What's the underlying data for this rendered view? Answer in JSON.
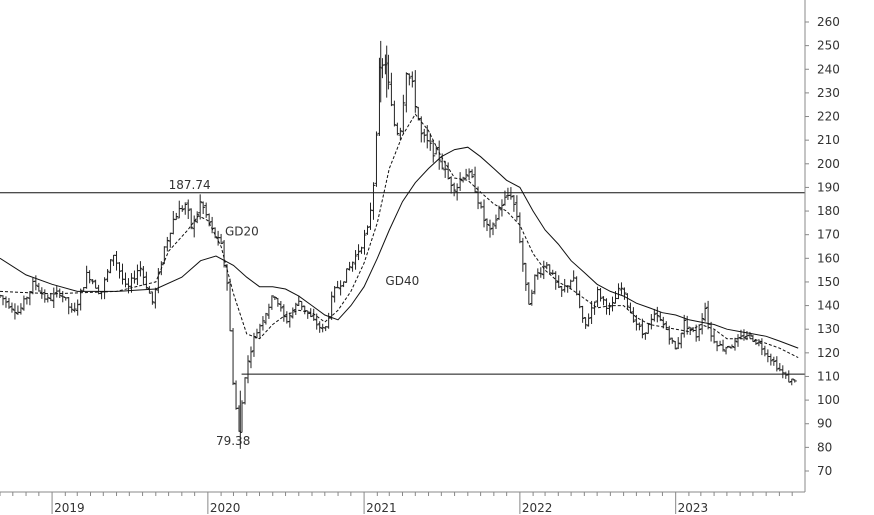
{
  "chart_data": {
    "type": "ohlc",
    "title": "",
    "xlabel": "",
    "ylabel": "",
    "ylim": [
      60,
      265
    ],
    "y_ticks": [
      70,
      80,
      90,
      100,
      110,
      120,
      130,
      140,
      150,
      160,
      170,
      180,
      190,
      200,
      210,
      220,
      230,
      240,
      250,
      260
    ],
    "x_range": [
      "2018-09-01",
      "2023-10-31"
    ],
    "x_ticks": [
      {
        "date": "2019-01-01",
        "label": "2019"
      },
      {
        "date": "2020-01-01",
        "label": "2020"
      },
      {
        "date": "2021-01-01",
        "label": "2021"
      },
      {
        "date": "2022-01-01",
        "label": "2022"
      },
      {
        "date": "2023-01-01",
        "label": "2023"
      }
    ],
    "grid": false,
    "horizontal_lines": [
      {
        "y": 187.74,
        "from": "2018-09-01",
        "to": "2023-10-31"
      },
      {
        "y": 111,
        "from": "2020-03-20",
        "to": "2023-10-31"
      }
    ],
    "annotations": [
      {
        "text": "187.74",
        "date": "2019-10-01",
        "y": 187.74
      },
      {
        "text": "79.38",
        "date": "2020-01-20",
        "y": 79.38
      },
      {
        "text": "GD20",
        "date": "2020-02-10",
        "y": 168
      },
      {
        "text": "GD40",
        "date": "2021-02-20",
        "y": 147
      }
    ],
    "price_anchors": [
      [
        "2018-09-01",
        144
      ],
      [
        "2018-10-15",
        137
      ],
      [
        "2018-11-20",
        150
      ],
      [
        "2018-12-20",
        142
      ],
      [
        "2019-01-20",
        146
      ],
      [
        "2019-02-20",
        136
      ],
      [
        "2019-03-25",
        154
      ],
      [
        "2019-04-25",
        145
      ],
      [
        "2019-05-25",
        162
      ],
      [
        "2019-06-25",
        146
      ],
      [
        "2019-07-25",
        157
      ],
      [
        "2019-08-25",
        141
      ],
      [
        "2019-09-20",
        164
      ],
      [
        "2019-10-15",
        178
      ],
      [
        "2019-11-10",
        183
      ],
      [
        "2019-11-25",
        172
      ],
      [
        "2019-12-15",
        184
      ],
      [
        "2020-01-10",
        172
      ],
      [
        "2020-02-01",
        165
      ],
      [
        "2020-02-15",
        150
      ],
      [
        "2020-03-01",
        105
      ],
      [
        "2020-03-15",
        85
      ],
      [
        "2020-03-25",
        108
      ],
      [
        "2020-04-15",
        125
      ],
      [
        "2020-05-10",
        135
      ],
      [
        "2020-06-05",
        145
      ],
      [
        "2020-07-01",
        133
      ],
      [
        "2020-08-01",
        142
      ],
      [
        "2020-09-01",
        134
      ],
      [
        "2020-10-01",
        129
      ],
      [
        "2020-10-20",
        145
      ],
      [
        "2020-11-15",
        152
      ],
      [
        "2020-12-10",
        160
      ],
      [
        "2021-01-10",
        172
      ],
      [
        "2021-01-25",
        195
      ],
      [
        "2021-02-05",
        238
      ],
      [
        "2021-02-20",
        243
      ],
      [
        "2021-03-10",
        218
      ],
      [
        "2021-03-25",
        212
      ],
      [
        "2021-04-10",
        240
      ],
      [
        "2021-04-25",
        232
      ],
      [
        "2021-05-15",
        212
      ],
      [
        "2021-06-05",
        207
      ],
      [
        "2021-06-25",
        203
      ],
      [
        "2021-07-15",
        194
      ],
      [
        "2021-08-05",
        190
      ],
      [
        "2021-08-25",
        197
      ],
      [
        "2021-09-15",
        192
      ],
      [
        "2021-10-05",
        178
      ],
      [
        "2021-10-25",
        170
      ],
      [
        "2021-11-15",
        182
      ],
      [
        "2021-12-10",
        188
      ],
      [
        "2021-12-25",
        178
      ],
      [
        "2022-01-10",
        155
      ],
      [
        "2022-01-20",
        140
      ],
      [
        "2022-02-05",
        152
      ],
      [
        "2022-03-05",
        158
      ],
      [
        "2022-04-05",
        145
      ],
      [
        "2022-05-05",
        152
      ],
      [
        "2022-06-01",
        130
      ],
      [
        "2022-07-01",
        146
      ],
      [
        "2022-08-01",
        138
      ],
      [
        "2022-08-25",
        148
      ],
      [
        "2022-09-20",
        136
      ],
      [
        "2022-10-15",
        128
      ],
      [
        "2022-11-15",
        136
      ],
      [
        "2022-12-10",
        130
      ],
      [
        "2023-01-01",
        121
      ],
      [
        "2023-01-20",
        133
      ],
      [
        "2023-02-20",
        127
      ],
      [
        "2023-03-10",
        140
      ],
      [
        "2023-03-25",
        127
      ],
      [
        "2023-04-20",
        122
      ],
      [
        "2023-05-20",
        124
      ],
      [
        "2023-06-15",
        128
      ],
      [
        "2023-07-15",
        124
      ],
      [
        "2023-08-15",
        117
      ],
      [
        "2023-09-05",
        112
      ],
      [
        "2023-09-25",
        108
      ],
      [
        "2023-10-10",
        109
      ]
    ],
    "gd20_anchors": [
      [
        "2018-09-01",
        146
      ],
      [
        "2019-01-01",
        145
      ],
      [
        "2019-06-01",
        146
      ],
      [
        "2019-09-01",
        150
      ],
      [
        "2019-10-01",
        163
      ],
      [
        "2019-11-15",
        172
      ],
      [
        "2019-12-10",
        178
      ],
      [
        "2020-01-01",
        176
      ],
      [
        "2020-02-01",
        165
      ],
      [
        "2020-03-01",
        145
      ],
      [
        "2020-04-01",
        128
      ],
      [
        "2020-05-01",
        126
      ],
      [
        "2020-06-01",
        132
      ],
      [
        "2020-07-01",
        136
      ],
      [
        "2020-08-01",
        138
      ],
      [
        "2020-09-01",
        137
      ],
      [
        "2020-10-01",
        133
      ],
      [
        "2020-11-01",
        138
      ],
      [
        "2020-12-01",
        146
      ],
      [
        "2021-01-01",
        158
      ],
      [
        "2021-02-01",
        175
      ],
      [
        "2021-03-01",
        198
      ],
      [
        "2021-04-01",
        212
      ],
      [
        "2021-05-01",
        221
      ],
      [
        "2021-06-01",
        214
      ],
      [
        "2021-07-01",
        203
      ],
      [
        "2021-08-01",
        194
      ],
      [
        "2021-09-01",
        193
      ],
      [
        "2021-10-01",
        188
      ],
      [
        "2021-11-01",
        183
      ],
      [
        "2021-12-01",
        180
      ],
      [
        "2022-01-01",
        174
      ],
      [
        "2022-02-01",
        162
      ],
      [
        "2022-03-01",
        155
      ],
      [
        "2022-04-01",
        150
      ],
      [
        "2022-05-01",
        147
      ],
      [
        "2022-06-01",
        143
      ],
      [
        "2022-07-01",
        139
      ],
      [
        "2022-08-01",
        140
      ],
      [
        "2022-09-01",
        140
      ],
      [
        "2022-10-01",
        135
      ],
      [
        "2022-11-01",
        132
      ],
      [
        "2022-12-01",
        131
      ],
      [
        "2023-01-01",
        130
      ],
      [
        "2023-02-01",
        129
      ],
      [
        "2023-03-01",
        132
      ],
      [
        "2023-04-01",
        130
      ],
      [
        "2023-05-01",
        126
      ],
      [
        "2023-06-01",
        126
      ],
      [
        "2023-07-01",
        126
      ],
      [
        "2023-08-01",
        124
      ],
      [
        "2023-09-01",
        122
      ],
      [
        "2023-10-15",
        118
      ]
    ],
    "gd40_anchors": [
      [
        "2018-09-01",
        160
      ],
      [
        "2018-11-01",
        153
      ],
      [
        "2019-01-01",
        149
      ],
      [
        "2019-03-01",
        146
      ],
      [
        "2019-06-01",
        146
      ],
      [
        "2019-09-01",
        147
      ],
      [
        "2019-11-01",
        152
      ],
      [
        "2019-12-15",
        159
      ],
      [
        "2020-01-20",
        161
      ],
      [
        "2020-03-01",
        157
      ],
      [
        "2020-04-01",
        152
      ],
      [
        "2020-05-01",
        148
      ],
      [
        "2020-06-01",
        148
      ],
      [
        "2020-07-01",
        147
      ],
      [
        "2020-08-01",
        144
      ],
      [
        "2020-09-01",
        140
      ],
      [
        "2020-10-01",
        136
      ],
      [
        "2020-11-01",
        134
      ],
      [
        "2020-12-01",
        140
      ],
      [
        "2021-01-01",
        148
      ],
      [
        "2021-02-01",
        160
      ],
      [
        "2021-03-01",
        172
      ],
      [
        "2021-04-01",
        184
      ],
      [
        "2021-05-01",
        192
      ],
      [
        "2021-06-01",
        198
      ],
      [
        "2021-07-01",
        203
      ],
      [
        "2021-08-01",
        206
      ],
      [
        "2021-09-01",
        207
      ],
      [
        "2021-10-01",
        203
      ],
      [
        "2021-11-01",
        198
      ],
      [
        "2021-12-01",
        193
      ],
      [
        "2022-01-01",
        190
      ],
      [
        "2022-02-01",
        180
      ],
      [
        "2022-03-01",
        172
      ],
      [
        "2022-04-01",
        166
      ],
      [
        "2022-05-01",
        159
      ],
      [
        "2022-06-01",
        154
      ],
      [
        "2022-07-01",
        149
      ],
      [
        "2022-08-01",
        146
      ],
      [
        "2022-09-01",
        144
      ],
      [
        "2022-10-01",
        141
      ],
      [
        "2022-11-01",
        139
      ],
      [
        "2022-12-01",
        137
      ],
      [
        "2023-01-01",
        136
      ],
      [
        "2023-02-01",
        134
      ],
      [
        "2023-03-01",
        133
      ],
      [
        "2023-04-01",
        132
      ],
      [
        "2023-05-01",
        130
      ],
      [
        "2023-06-01",
        129
      ],
      [
        "2023-07-01",
        128
      ],
      [
        "2023-08-01",
        127
      ],
      [
        "2023-09-01",
        125
      ],
      [
        "2023-10-15",
        122
      ]
    ],
    "colors": {
      "bars": "#222222",
      "lines": "#111111",
      "axis": "#888888",
      "text": "#333333"
    }
  }
}
